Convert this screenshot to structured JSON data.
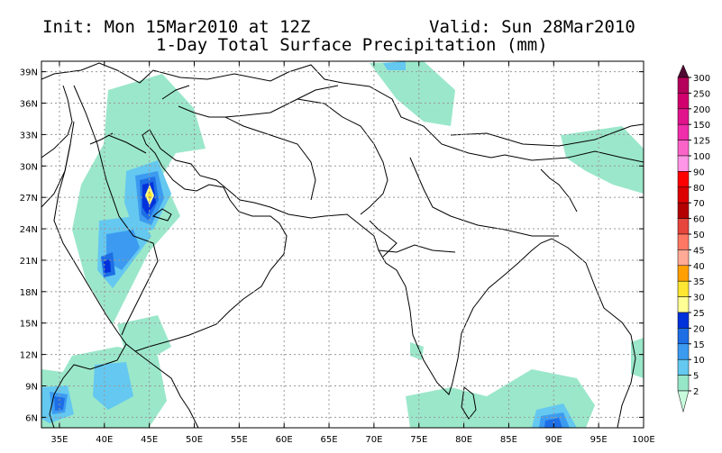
{
  "header": {
    "init": "Init: Mon 15Mar2010 at 12Z",
    "valid": "Valid: Sun 28Mar2010",
    "title": "1-Day Total Surface Precipitation (mm)"
  },
  "map": {
    "lon_range": [
      33,
      100
    ],
    "lat_range": [
      5,
      40
    ],
    "lat_ticks": [
      "39N",
      "36N",
      "33N",
      "30N",
      "27N",
      "24N",
      "21N",
      "18N",
      "15N",
      "12N",
      "9N",
      "6N"
    ],
    "lon_ticks": [
      "35E",
      "40E",
      "45E",
      "50E",
      "55E",
      "60E",
      "65E",
      "70E",
      "75E",
      "80E",
      "85E",
      "90E",
      "95E",
      "100E"
    ]
  },
  "colorbar": {
    "labels": [
      "300",
      "250",
      "200",
      "150",
      "125",
      "100",
      "90",
      "80",
      "70",
      "60",
      "50",
      "45",
      "40",
      "35",
      "30",
      "25",
      "20",
      "15",
      "10",
      "5",
      "2"
    ],
    "colors": [
      "#b4005a",
      "#d2006e",
      "#e1148c",
      "#f02daa",
      "#fa64c8",
      "#ff96e6",
      "#ff0000",
      "#dc0000",
      "#b40000",
      "#e6463c",
      "#ff7864",
      "#ffaa96",
      "#ffa000",
      "#ffe632",
      "#ffff96",
      "#0032dc",
      "#1e6ee6",
      "#3c9bf0",
      "#64c8f0",
      "#96e6c8",
      "#c8fadc"
    ],
    "top_color": "#500a32"
  }
}
